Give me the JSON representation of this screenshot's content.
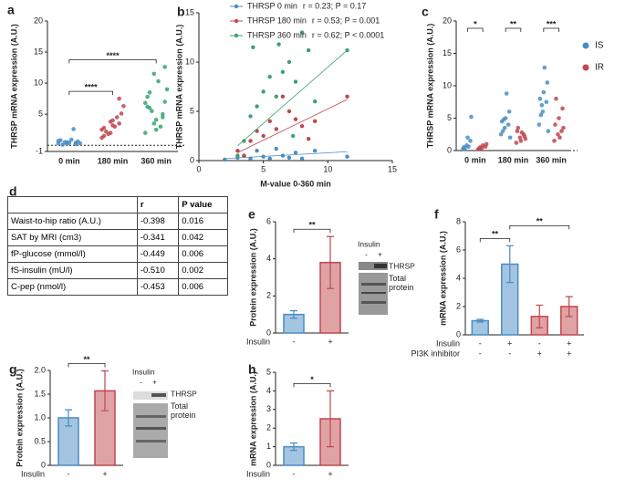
{
  "chart_data": [
    {
      "type": "strip",
      "panel": "a",
      "ylabel": "THRSP mRNA expression (A.U.)",
      "categories": [
        "0 min",
        "180 min",
        "360 min"
      ],
      "colors": [
        "#4a8cc4",
        "#c0474e",
        "#3aa36f"
      ],
      "values": [
        [
          0.3,
          0.5,
          0.2,
          0.8,
          0.4,
          0.6,
          0.1,
          0.9,
          0.3,
          0.5,
          2.6,
          0.7,
          0.2,
          0.4
        ],
        [
          1.2,
          2.0,
          3.5,
          2.8,
          4.0,
          5.1,
          2.2,
          3.0,
          6.3,
          1.8,
          4.5,
          2.5,
          3.8,
          7.5,
          1.5,
          3.2
        ],
        [
          2.0,
          3.5,
          5.0,
          6.2,
          4.1,
          7.0,
          8.5,
          10.3,
          9.0,
          5.5,
          3.0,
          6.8,
          11.5,
          4.5,
          7.8,
          2.5,
          12.6,
          6.0
        ]
      ],
      "ylim": [
        -1,
        20
      ],
      "yticks": [
        -1,
        5,
        10,
        15,
        20
      ],
      "zero_line": true,
      "brackets": [
        {
          "between": [
            0,
            1
          ],
          "label": "****"
        },
        {
          "between": [
            0,
            2
          ],
          "label": "****"
        }
      ]
    },
    {
      "type": "scatter",
      "panel": "b",
      "xlabel": "M-value 0-360 min",
      "ylabel": "THRSP mRNA expression (A.U.)",
      "series": [
        {
          "name": "THRSP 0 min",
          "stat": "r = 0.23; P = 0.17",
          "color": "#4a8cc4",
          "x": [
            2,
            3,
            3.5,
            4,
            4.5,
            5,
            5.5,
            6,
            6.5,
            7,
            7.5,
            8,
            9,
            11.5
          ],
          "y": [
            0.1,
            0.3,
            0.5,
            0.2,
            1.0,
            0.4,
            0.2,
            1.2,
            0.5,
            0.3,
            0.8,
            0.2,
            1.0,
            0.4
          ],
          "fit_x": [
            2,
            11.5
          ],
          "fit_y": [
            0.2,
            0.9
          ]
        },
        {
          "name": "THRSP 180 min",
          "stat": "r =  0.53; P = 0.001",
          "color": "#c0474e",
          "x": [
            3,
            3.5,
            4,
            4.5,
            5,
            5.5,
            6,
            6.5,
            7,
            7.5,
            8,
            8.5,
            9,
            11.5
          ],
          "y": [
            1.0,
            0.5,
            2.0,
            3.0,
            2.5,
            4.0,
            3.2,
            6.5,
            5.0,
            4.2,
            3.5,
            2.2,
            4.0,
            6.5
          ],
          "fit_x": [
            3,
            11.5
          ],
          "fit_y": [
            0.8,
            6.2
          ]
        },
        {
          "name": "THRSP 360 min",
          "stat": "r = 0.62; P < 0.0001",
          "color": "#3aa36f",
          "x": [
            3,
            3.5,
            4,
            4.5,
            5,
            5.5,
            6,
            6.5,
            7,
            7.5,
            8,
            8.5,
            9,
            11.5,
            4.2,
            6.2,
            7.3
          ],
          "y": [
            0.5,
            2.0,
            4.5,
            5.5,
            7.0,
            8.5,
            6.5,
            9.0,
            10.0,
            8.0,
            13.0,
            11.2,
            6.0,
            11.2,
            11.5,
            11.8,
            2.5
          ],
          "fit_x": [
            3,
            11.5
          ],
          "fit_y": [
            1.5,
            11.2
          ]
        }
      ],
      "xlim": [
        0,
        15
      ],
      "xticks": [
        0,
        5,
        10,
        15
      ],
      "ylim": [
        0,
        15
      ],
      "yticks": [
        0,
        5,
        10,
        15
      ]
    },
    {
      "type": "strip",
      "panel": "c",
      "ylabel": "THRSP mRNA expression (A.U.)",
      "categories": [
        "0 min",
        "180 min",
        "360 min"
      ],
      "series": [
        {
          "name": "IS",
          "color": "#4a8cc4",
          "values": [
            [
              0.3,
              0.8,
              1.5,
              0.5,
              2.0,
              5.2,
              0.2,
              0.6
            ],
            [
              2.5,
              3.5,
              4.0,
              4.5,
              5.0,
              6.0,
              3.0,
              8.8,
              2.0,
              4.8
            ],
            [
              4.0,
              6.0,
              7.5,
              8.0,
              9.0,
              10.5,
              5.5,
              12.8,
              3.0,
              7.0
            ]
          ]
        },
        {
          "name": "IR",
          "color": "#c0474e",
          "values": [
            [
              0.2,
              0.4,
              0.6,
              0.3,
              0.8,
              1.0,
              0.5
            ],
            [
              1.2,
              2.0,
              2.5,
              3.0,
              1.5,
              2.2,
              3.5,
              2.8,
              1.8
            ],
            [
              1.5,
              2.5,
              3.0,
              4.0,
              5.0,
              6.5,
              8.0,
              2.0,
              3.5
            ]
          ]
        }
      ],
      "ylim": [
        0,
        20
      ],
      "yticks": [
        0,
        5,
        10,
        15,
        20
      ],
      "zero_line": true,
      "significance": [
        "*",
        "**",
        "***"
      ]
    },
    {
      "type": "bar",
      "panel": "e",
      "ylabel": "Protein expression (A.U.)",
      "values": [
        1.0,
        3.8
      ],
      "errors": [
        0.2,
        1.4
      ],
      "colors": [
        "#4a8cc4",
        "#c0474e"
      ],
      "rows": [
        {
          "name": "Insulin",
          "values": [
            "-",
            "+"
          ]
        }
      ],
      "ylim": [
        0,
        6
      ],
      "yticks": [
        0,
        2,
        4,
        6
      ],
      "brackets": [
        {
          "between": [
            0,
            1
          ],
          "label": "**"
        }
      ],
      "blot": {
        "title": "Insulin",
        "lanes": [
          "-",
          "+"
        ],
        "band": "THRSP",
        "total": "Total protein"
      }
    },
    {
      "type": "bar",
      "panel": "f",
      "ylabel": "mRNA expression (A.U.)",
      "values": [
        1.0,
        5.0,
        1.3,
        2.0
      ],
      "errors": [
        0.1,
        1.3,
        0.8,
        0.7
      ],
      "colors": [
        "#4a8cc4",
        "#4a8cc4",
        "#c0474e",
        "#c0474e"
      ],
      "rows": [
        {
          "name": "Insulin",
          "values": [
            "-",
            "+",
            "-",
            "+"
          ]
        },
        {
          "name": "PI3K inhibitor",
          "values": [
            "-",
            "-",
            "+",
            "+"
          ]
        }
      ],
      "ylim": [
        0,
        8
      ],
      "yticks": [
        0,
        2,
        4,
        6,
        8
      ],
      "brackets": [
        {
          "between": [
            0,
            1
          ],
          "label": "**"
        },
        {
          "between": [
            1,
            3
          ],
          "label": "**"
        }
      ]
    },
    {
      "type": "bar",
      "panel": "g",
      "ylabel": "Protein expression (A.U.)",
      "values": [
        1.0,
        1.57
      ],
      "errors": [
        0.17,
        0.42
      ],
      "colors": [
        "#4a8cc4",
        "#c0474e"
      ],
      "rows": [
        {
          "name": "Insulin",
          "values": [
            "-",
            "+"
          ]
        }
      ],
      "ylim": [
        0,
        2
      ],
      "yticks": [
        0,
        0.5,
        {
          "value": 1,
          "label": "1.0"
        },
        1.5,
        {
          "value": 2,
          "label": "2.0"
        }
      ],
      "brackets": [
        {
          "between": [
            0,
            1
          ],
          "label": "**"
        }
      ],
      "blot": {
        "title": "Insulin",
        "lanes": [
          "-",
          "+"
        ],
        "band": "THRSP",
        "total": "Total protein"
      }
    },
    {
      "type": "bar",
      "panel": "h",
      "ylabel": "mRNA expression (A.U.)",
      "values": [
        1.0,
        2.5
      ],
      "errors": [
        0.2,
        1.5
      ],
      "colors": [
        "#4a8cc4",
        "#c0474e"
      ],
      "rows": [
        {
          "name": "Insulin",
          "values": [
            "-",
            "+"
          ]
        }
      ],
      "ylim": [
        0,
        5
      ],
      "yticks": [
        0,
        1,
        2,
        3,
        4,
        5
      ],
      "brackets": [
        {
          "between": [
            0,
            1
          ],
          "label": "*"
        }
      ]
    }
  ],
  "table": {
    "panel": "d",
    "header": [
      "r",
      "P value"
    ],
    "rows": [
      [
        "Waist-to-hip ratio (A.U.)",
        "-0.398",
        "0.016"
      ],
      [
        "SAT by MRI (cm3)",
        "-0.341",
        "0.042"
      ],
      [
        "fP-glucose (mmol/l)",
        "-0.449",
        "0.006"
      ],
      [
        "fS-insulin (mU/l)",
        "-0.510",
        "0.002"
      ],
      [
        "C-pep (nmol/l)",
        "-0.453",
        "0.006"
      ]
    ]
  }
}
